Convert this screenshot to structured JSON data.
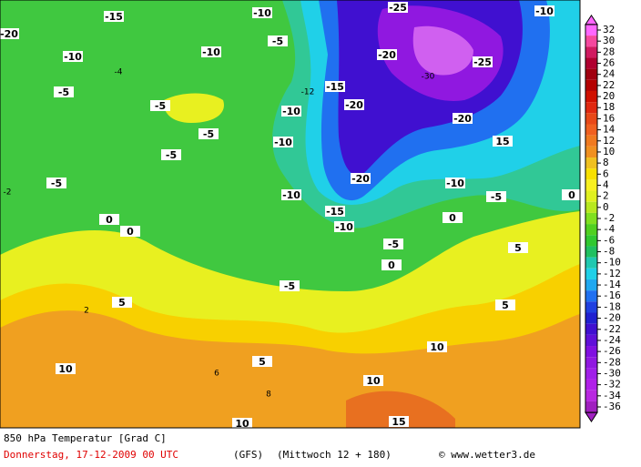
{
  "map": {
    "legend": {
      "ticks": [
        32,
        30,
        28,
        26,
        24,
        22,
        20,
        18,
        16,
        14,
        12,
        10,
        8,
        6,
        4,
        2,
        0,
        -2,
        -4,
        -6,
        -8,
        -10,
        -12,
        -14,
        -16,
        -18,
        -20,
        -22,
        -24,
        -26,
        -28,
        -30,
        -32,
        -34,
        -36
      ],
      "colors": [
        "#ff66ff",
        "#f5489e",
        "#d01a60",
        "#b00030",
        "#a00010",
        "#b40000",
        "#d01000",
        "#e02810",
        "#e84818",
        "#f06020",
        "#f07a20",
        "#f09020",
        "#f0c020",
        "#f8e000",
        "#f8f020",
        "#e0f020",
        "#b8e820",
        "#80e020",
        "#50d020",
        "#30c830",
        "#20c060",
        "#20c8b0",
        "#20d0e8",
        "#20a8f0",
        "#2070f0",
        "#2040e0",
        "#2020d0",
        "#4010d0",
        "#6010d8",
        "#8010e0",
        "#9018e0",
        "#a020e8",
        "#b020e8",
        "#b828e0",
        "#a020c0"
      ]
    },
    "contour_labels": [
      -15,
      -10,
      -25,
      -10,
      -20,
      -10,
      -5,
      -5,
      -10,
      -20,
      -25,
      -30,
      -15,
      -20,
      -5,
      -5,
      -10,
      -10,
      -20,
      15,
      -5,
      -5,
      -20,
      -10,
      -10,
      -15,
      -10,
      0,
      0,
      0,
      -5,
      0,
      5,
      -5,
      0,
      -5,
      5,
      5,
      2,
      10,
      5,
      10,
      10,
      10,
      15,
      8,
      6,
      -4,
      -2,
      -12
    ],
    "footer": {
      "title": "850 hPa Temperatur [Grad C]",
      "date": "Donnerstag, 17-12-2009  00 UTC",
      "model": "(GFS)",
      "run": "(Mittwoch 12 + 180)",
      "source": "© www.wetter3.de"
    }
  }
}
